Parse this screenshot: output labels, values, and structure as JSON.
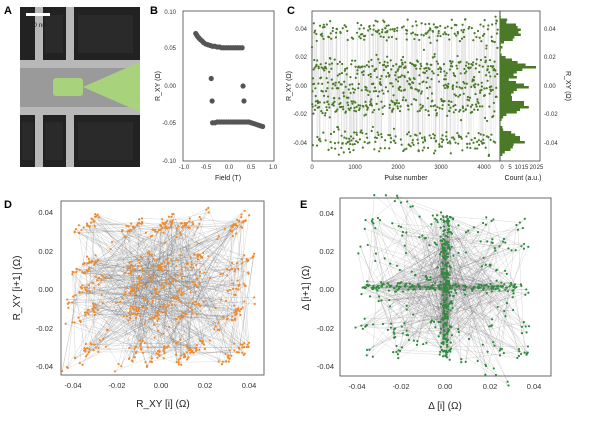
{
  "chart_data": [
    {
      "panel": "A",
      "type": "image",
      "scale_bar": "100 nm"
    },
    {
      "panel": "B",
      "type": "scatter",
      "xlabel": "Field (T)",
      "ylabel": "R_XY (Ω)",
      "xlim": [
        -1.0,
        1.0
      ],
      "ylim": [
        -0.1,
        0.1
      ],
      "xticks": [
        "-1.0",
        "-0.5",
        "0.0",
        "0.5",
        "1.0"
      ],
      "yticks": [
        "0.10",
        "0.05",
        "0.00",
        "-0.05",
        "-0.10"
      ],
      "series": [
        {
          "values": [
            [
              -0.72,
              0.07
            ],
            [
              -0.7,
              0.068
            ],
            [
              -0.68,
              0.066
            ],
            [
              -0.65,
              0.064
            ],
            [
              -0.62,
              0.062
            ],
            [
              -0.58,
              0.06
            ],
            [
              -0.55,
              0.058
            ],
            [
              -0.5,
              0.056
            ],
            [
              -0.45,
              0.055
            ],
            [
              -0.4,
              0.054
            ],
            [
              -0.35,
              0.053
            ],
            [
              -0.3,
              0.053
            ],
            [
              -0.25,
              0.052
            ],
            [
              -0.2,
              0.052
            ],
            [
              -0.15,
              0.051
            ],
            [
              -0.1,
              0.051
            ],
            [
              -0.05,
              0.051
            ],
            [
              0.0,
              0.051
            ],
            [
              0.05,
              0.051
            ],
            [
              0.1,
              0.051
            ],
            [
              0.15,
              0.051
            ],
            [
              0.2,
              0.051
            ],
            [
              0.25,
              0.051
            ],
            [
              0.3,
              0.051
            ],
            [
              0.32,
              0.0
            ],
            [
              0.34,
              -0.02
            ],
            [
              -0.38,
              0.01
            ],
            [
              -0.36,
              -0.02
            ],
            [
              -0.35,
              -0.049
            ],
            [
              -0.3,
              -0.049
            ],
            [
              -0.25,
              -0.048
            ],
            [
              -0.2,
              -0.048
            ],
            [
              -0.15,
              -0.048
            ],
            [
              -0.1,
              -0.048
            ],
            [
              -0.05,
              -0.048
            ],
            [
              0.0,
              -0.048
            ],
            [
              0.05,
              -0.048
            ],
            [
              0.1,
              -0.048
            ],
            [
              0.15,
              -0.048
            ],
            [
              0.2,
              -0.048
            ],
            [
              0.25,
              -0.048
            ],
            [
              0.3,
              -0.048
            ],
            [
              0.35,
              -0.048
            ],
            [
              0.4,
              -0.048
            ],
            [
              0.45,
              -0.048
            ],
            [
              0.5,
              -0.049
            ],
            [
              0.55,
              -0.05
            ],
            [
              0.6,
              -0.051
            ],
            [
              0.65,
              -0.052
            ],
            [
              0.7,
              -0.053
            ],
            [
              0.75,
              -0.054
            ]
          ]
        }
      ]
    },
    {
      "panel": "C",
      "type": "scatter",
      "xlabel": "Pulse number",
      "ylabel": "R_XY (Ω)",
      "xlim": [
        0,
        4400
      ],
      "ylim": [
        -0.045,
        0.045
      ],
      "xticks": [
        "0",
        "1000",
        "2000",
        "3000",
        "4000"
      ],
      "yticks": [
        "0.04",
        "0.02",
        "0.00",
        "-0.02",
        "-0.04"
      ],
      "levels": [
        0.033,
        0.012,
        0.0,
        -0.012,
        -0.033
      ],
      "histogram": {
        "xlabel": "Count (a.u.)",
        "xticks": [
          "0",
          "5",
          "10",
          "15",
          "20",
          "25"
        ],
        "ylabel": "R_XY (Ω)",
        "yticks": [
          "0.04",
          "0.02",
          "0.00",
          "-0.02",
          "-0.04"
        ]
      }
    },
    {
      "panel": "D",
      "type": "scatter",
      "xlabel": "R_XY [i] (Ω)",
      "ylabel": "R_XY [i+1] (Ω)",
      "xlim": [
        -0.045,
        0.045
      ],
      "ylim": [
        -0.045,
        0.045
      ],
      "xticks": [
        "-0.04",
        "-0.02",
        "0.00",
        "0.02",
        "0.04"
      ],
      "yticks": [
        "0.04",
        "0.02",
        "0.00",
        "-0.02",
        "-0.04"
      ],
      "levels": [
        -0.033,
        -0.012,
        0.0,
        0.012,
        0.033
      ]
    },
    {
      "panel": "E",
      "type": "scatter",
      "xlabel": "Δ [i] (Ω)",
      "ylabel": "Δ [i+1] (Ω)",
      "xlim": [
        -0.045,
        0.045
      ],
      "ylim": [
        -0.045,
        0.045
      ],
      "xticks": [
        "-0.04",
        "-0.02",
        "0.00",
        "0.02",
        "0.04"
      ],
      "yticks": [
        "0.04",
        "0.02",
        "0.00",
        "-0.02",
        "-0.04"
      ],
      "levels": [
        -0.033,
        -0.02,
        0.0,
        0.02,
        0.033
      ]
    }
  ],
  "colors": {
    "panel_c": "#4a7a28",
    "panel_d": "#f08a2a",
    "panel_e": "#2f8a3e",
    "lines": "#555555",
    "panel_b_marker": "#555555",
    "highlight": "#a8d37c"
  }
}
